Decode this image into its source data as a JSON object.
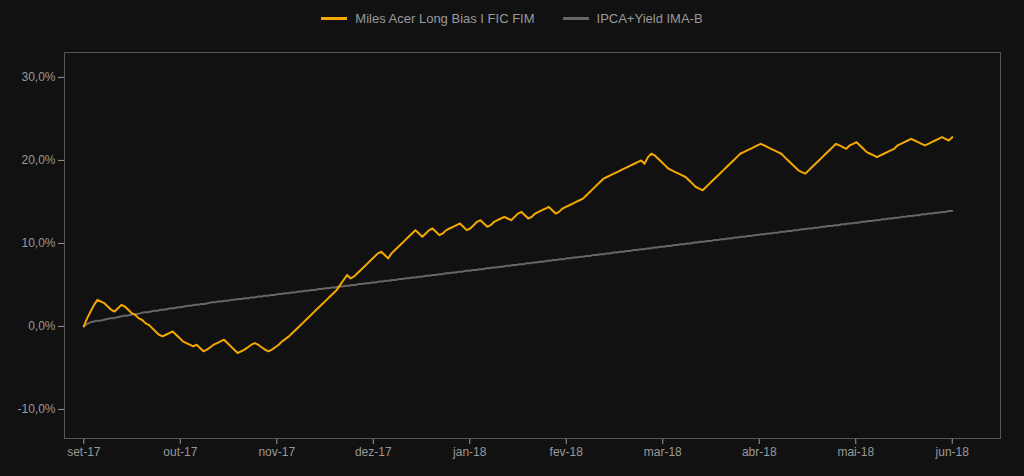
{
  "chart_data": {
    "type": "line",
    "legend": "top",
    "grid": false,
    "xlim": [
      -0.2,
      9.5
    ],
    "xticks": [
      {
        "value": 0,
        "label": "set-17"
      },
      {
        "value": 1,
        "label": "out-17"
      },
      {
        "value": 2,
        "label": "nov-17"
      },
      {
        "value": 3,
        "label": "dez-17"
      },
      {
        "value": 4,
        "label": "jan-18"
      },
      {
        "value": 5,
        "label": "fev-18"
      },
      {
        "value": 6,
        "label": "mar-18"
      },
      {
        "value": 7,
        "label": "abr-18"
      },
      {
        "value": 8,
        "label": "mai-18"
      },
      {
        "value": 9,
        "label": "jun-18"
      }
    ],
    "ylim": [
      -0.135,
      0.33
    ],
    "yticks": [
      {
        "value": -0.1,
        "label": "-10,0%"
      },
      {
        "value": 0.0,
        "label": "0,0%"
      },
      {
        "value": 0.1,
        "label": "10,0%"
      },
      {
        "value": 0.2,
        "label": "20,0%"
      },
      {
        "value": 0.3,
        "label": "30,0%"
      }
    ],
    "series": [
      {
        "name": "Miles Acer Long Bias I FIC FIM",
        "color": "#F5A800",
        "values": [
          0.0,
          0.01,
          0.018,
          0.026,
          0.032,
          0.03,
          0.028,
          0.024,
          0.02,
          0.018,
          0.022,
          0.026,
          0.024,
          0.02,
          0.016,
          0.014,
          0.01,
          0.008,
          0.004,
          0.002,
          -0.002,
          -0.006,
          -0.01,
          -0.012,
          -0.01,
          -0.008,
          -0.006,
          -0.01,
          -0.014,
          -0.018,
          -0.02,
          -0.022,
          -0.024,
          -0.022,
          -0.026,
          -0.03,
          -0.028,
          -0.025,
          -0.022,
          -0.02,
          -0.018,
          -0.016,
          -0.02,
          -0.024,
          -0.028,
          -0.032,
          -0.03,
          -0.028,
          -0.025,
          -0.022,
          -0.02,
          -0.022,
          -0.025,
          -0.028,
          -0.03,
          -0.028,
          -0.025,
          -0.022,
          -0.018,
          -0.015,
          -0.012,
          -0.008,
          -0.004,
          0.0,
          0.004,
          0.008,
          0.012,
          0.016,
          0.02,
          0.024,
          0.028,
          0.032,
          0.036,
          0.04,
          0.044,
          0.05,
          0.056,
          0.062,
          0.058,
          0.06,
          0.064,
          0.068,
          0.072,
          0.076,
          0.08,
          0.084,
          0.088,
          0.09,
          0.086,
          0.082,
          0.088,
          0.092,
          0.096,
          0.1,
          0.104,
          0.108,
          0.112,
          0.116,
          0.112,
          0.108,
          0.112,
          0.116,
          0.118,
          0.114,
          0.11,
          0.112,
          0.116,
          0.118,
          0.12,
          0.122,
          0.124,
          0.12,
          0.116,
          0.118,
          0.122,
          0.126,
          0.128,
          0.124,
          0.12,
          0.122,
          0.126,
          0.128,
          0.13,
          0.132,
          0.13,
          0.128,
          0.132,
          0.136,
          0.138,
          0.134,
          0.13,
          0.132,
          0.136,
          0.138,
          0.14,
          0.142,
          0.144,
          0.14,
          0.136,
          0.138,
          0.142,
          0.144,
          0.146,
          0.148,
          0.15,
          0.152,
          0.154,
          0.158,
          0.162,
          0.166,
          0.17,
          0.174,
          0.178,
          0.18,
          0.182,
          0.184,
          0.186,
          0.188,
          0.19,
          0.192,
          0.194,
          0.196,
          0.198,
          0.2,
          0.196,
          0.204,
          0.208,
          0.206,
          0.202,
          0.198,
          0.194,
          0.19,
          0.188,
          0.186,
          0.184,
          0.182,
          0.18,
          0.176,
          0.172,
          0.168,
          0.166,
          0.164,
          0.168,
          0.172,
          0.176,
          0.18,
          0.184,
          0.188,
          0.192,
          0.196,
          0.2,
          0.204,
          0.208,
          0.21,
          0.212,
          0.214,
          0.216,
          0.218,
          0.22,
          0.218,
          0.216,
          0.214,
          0.212,
          0.21,
          0.208,
          0.204,
          0.2,
          0.196,
          0.192,
          0.188,
          0.186,
          0.184,
          0.188,
          0.192,
          0.196,
          0.2,
          0.204,
          0.208,
          0.212,
          0.216,
          0.22,
          0.218,
          0.216,
          0.214,
          0.218,
          0.22,
          0.222,
          0.218,
          0.214,
          0.21,
          0.208,
          0.206,
          0.204,
          0.206,
          0.208,
          0.21,
          0.212,
          0.214,
          0.218,
          0.22,
          0.222,
          0.224,
          0.226,
          0.224,
          0.222,
          0.22,
          0.218,
          0.22,
          0.222,
          0.224,
          0.226,
          0.228,
          0.226,
          0.224,
          0.228
        ]
      },
      {
        "name": "IPCA+Yield IMA-B",
        "color": "#666666",
        "values": [
          0.0,
          0.003,
          0.005,
          0.006,
          0.007,
          0.007,
          0.008,
          0.009,
          0.01,
          0.01,
          0.011,
          0.012,
          0.013,
          0.013,
          0.014,
          0.015,
          0.015,
          0.016,
          0.017,
          0.017,
          0.018,
          0.019,
          0.019,
          0.02,
          0.02,
          0.021,
          0.022,
          0.022,
          0.023,
          0.023,
          0.024,
          0.025,
          0.025,
          0.026,
          0.026,
          0.027,
          0.027,
          0.028,
          0.029,
          0.029,
          0.03,
          0.03,
          0.031,
          0.031,
          0.032,
          0.032,
          0.033,
          0.033,
          0.034,
          0.034,
          0.035,
          0.035,
          0.036,
          0.036,
          0.037,
          0.037,
          0.038,
          0.038,
          0.039,
          0.039,
          0.04,
          0.04,
          0.041,
          0.041,
          0.042,
          0.042,
          0.043,
          0.043,
          0.044,
          0.044,
          0.045,
          0.045,
          0.046,
          0.046,
          0.047,
          0.047,
          0.048,
          0.048,
          0.049,
          0.049,
          0.05,
          0.05,
          0.051,
          0.051,
          0.052,
          0.052,
          0.053,
          0.053,
          0.054,
          0.054,
          0.055,
          0.055,
          0.056,
          0.056,
          0.057,
          0.057,
          0.058,
          0.058,
          0.059,
          0.059,
          0.06,
          0.06,
          0.061,
          0.061,
          0.062,
          0.062,
          0.063,
          0.063,
          0.064,
          0.064,
          0.065,
          0.065,
          0.066,
          0.066,
          0.067,
          0.067,
          0.068,
          0.068,
          0.069,
          0.069,
          0.07,
          0.07,
          0.071,
          0.071,
          0.072,
          0.072,
          0.073,
          0.073,
          0.074,
          0.074,
          0.075,
          0.075,
          0.076,
          0.076,
          0.077,
          0.077,
          0.078,
          0.078,
          0.079,
          0.079,
          0.08,
          0.08,
          0.081,
          0.081,
          0.082,
          0.082,
          0.083,
          0.083,
          0.084,
          0.084,
          0.085,
          0.085,
          0.086,
          0.086,
          0.087,
          0.087,
          0.088,
          0.088,
          0.089,
          0.089,
          0.09,
          0.09,
          0.091,
          0.091,
          0.092,
          0.092,
          0.093,
          0.093,
          0.094,
          0.094,
          0.095,
          0.095,
          0.096,
          0.096,
          0.097,
          0.097,
          0.098,
          0.098,
          0.099,
          0.099,
          0.1,
          0.1,
          0.101,
          0.101,
          0.102,
          0.102,
          0.103,
          0.103,
          0.104,
          0.104,
          0.105,
          0.105,
          0.106,
          0.106,
          0.107,
          0.107,
          0.108,
          0.108,
          0.109,
          0.109,
          0.11,
          0.11,
          0.111,
          0.111,
          0.112,
          0.112,
          0.113,
          0.113,
          0.114,
          0.114,
          0.115,
          0.115,
          0.116,
          0.116,
          0.117,
          0.117,
          0.118,
          0.118,
          0.119,
          0.119,
          0.12,
          0.12,
          0.121,
          0.121,
          0.122,
          0.122,
          0.123,
          0.123,
          0.124,
          0.124,
          0.125,
          0.125,
          0.126,
          0.126,
          0.127,
          0.127,
          0.128,
          0.128,
          0.129,
          0.129,
          0.13,
          0.13,
          0.131,
          0.131,
          0.132,
          0.132,
          0.133,
          0.133,
          0.134,
          0.134,
          0.135,
          0.135,
          0.136,
          0.136,
          0.137,
          0.137,
          0.138,
          0.138,
          0.139,
          0.139
        ]
      }
    ]
  }
}
